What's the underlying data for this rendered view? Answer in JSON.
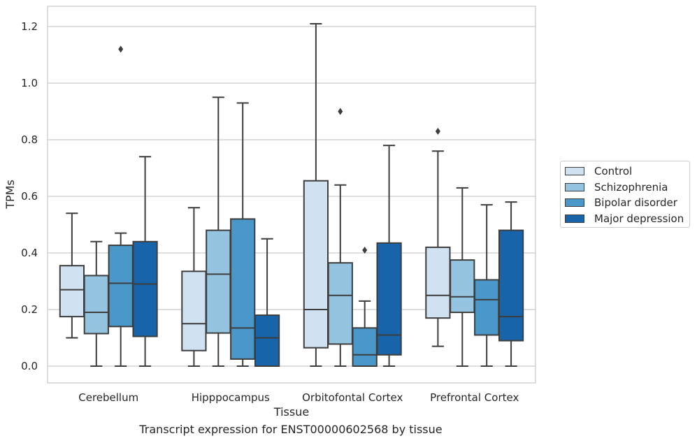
{
  "chart_data": {
    "type": "boxplot",
    "xlabel": "Tissue",
    "ylabel": "TPMs",
    "caption": "Transcript expression for ENST00000602568 by tissue",
    "ylim": [
      -0.06,
      1.27
    ],
    "yticks": [
      "0.0",
      "0.2",
      "0.4",
      "0.6",
      "0.8",
      "1.0",
      "1.2"
    ],
    "grid": "horizontal",
    "legend_position": "right",
    "categories": [
      "Cerebellum",
      "Hipppocampus",
      "Orbitofontal Cortex",
      "Prefrontal Cortex"
    ],
    "series": [
      {
        "name": "Control",
        "color": "#d0e1f2",
        "boxes": [
          {
            "whislo": 0.1,
            "q1": 0.175,
            "med": 0.27,
            "q3": 0.355,
            "whishi": 0.54,
            "fliers": []
          },
          {
            "whislo": 0.0,
            "q1": 0.055,
            "med": 0.15,
            "q3": 0.335,
            "whishi": 0.56,
            "fliers": []
          },
          {
            "whislo": 0.0,
            "q1": 0.065,
            "med": 0.2,
            "q3": 0.655,
            "whishi": 1.21,
            "fliers": []
          },
          {
            "whislo": 0.07,
            "q1": 0.17,
            "med": 0.25,
            "q3": 0.42,
            "whishi": 0.76,
            "fliers": [
              0.83
            ]
          }
        ]
      },
      {
        "name": "Schizophrenia",
        "color": "#94c4df",
        "boxes": [
          {
            "whislo": 0.0,
            "q1": 0.115,
            "med": 0.19,
            "q3": 0.32,
            "whishi": 0.44,
            "fliers": []
          },
          {
            "whislo": 0.0,
            "q1": 0.117,
            "med": 0.325,
            "q3": 0.48,
            "whishi": 0.95,
            "fliers": []
          },
          {
            "whislo": 0.0,
            "q1": 0.078,
            "med": 0.25,
            "q3": 0.365,
            "whishi": 0.64,
            "fliers": [
              0.9
            ]
          },
          {
            "whislo": 0.0,
            "q1": 0.19,
            "med": 0.245,
            "q3": 0.375,
            "whishi": 0.63,
            "fliers": []
          }
        ]
      },
      {
        "name": "Bipolar disorder",
        "color": "#4a98c9",
        "boxes": [
          {
            "whislo": 0.0,
            "q1": 0.14,
            "med": 0.293,
            "q3": 0.427,
            "whishi": 0.47,
            "fliers": [
              1.12
            ]
          },
          {
            "whislo": 0.0,
            "q1": 0.025,
            "med": 0.135,
            "q3": 0.52,
            "whishi": 0.93,
            "fliers": []
          },
          {
            "whislo": 0.0,
            "q1": 0.0,
            "med": 0.04,
            "q3": 0.135,
            "whishi": 0.23,
            "fliers": [
              0.41
            ]
          },
          {
            "whislo": 0.0,
            "q1": 0.11,
            "med": 0.235,
            "q3": 0.305,
            "whishi": 0.57,
            "fliers": []
          }
        ]
      },
      {
        "name": "Major depression",
        "color": "#1764ab",
        "boxes": [
          {
            "whislo": 0.0,
            "q1": 0.105,
            "med": 0.29,
            "q3": 0.44,
            "whishi": 0.74,
            "fliers": []
          },
          {
            "whislo": 0.0,
            "q1": 0.0,
            "med": 0.1,
            "q3": 0.18,
            "whishi": 0.45,
            "fliers": []
          },
          {
            "whislo": 0.0,
            "q1": 0.04,
            "med": 0.11,
            "q3": 0.435,
            "whishi": 0.78,
            "fliers": []
          },
          {
            "whislo": 0.0,
            "q1": 0.09,
            "med": 0.175,
            "q3": 0.48,
            "whishi": 0.58,
            "fliers": []
          }
        ]
      }
    ]
  }
}
